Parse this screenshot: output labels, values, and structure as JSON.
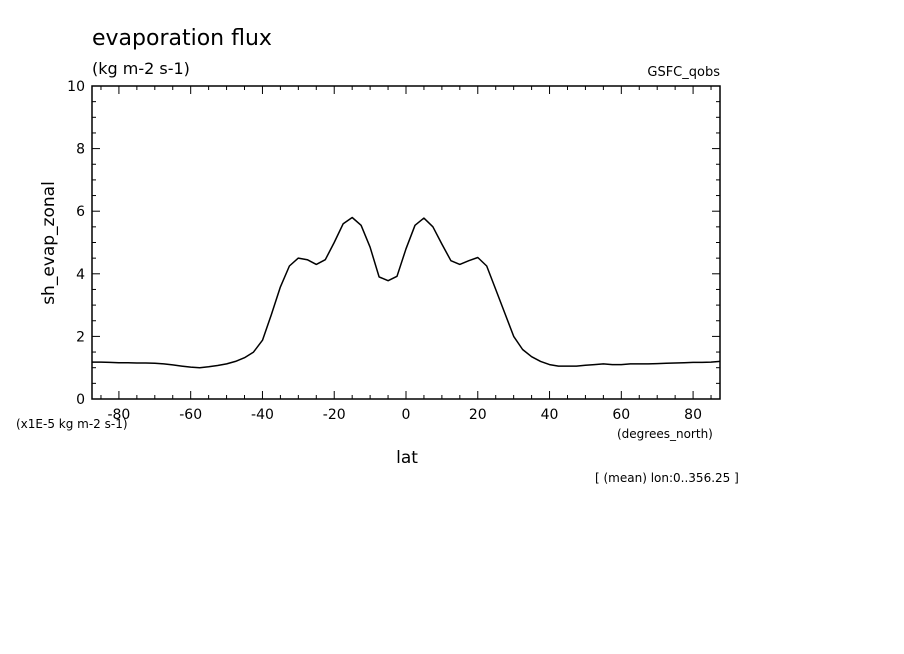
{
  "chart_data": {
    "type": "line",
    "title": "evaporation flux",
    "units": "(kg m-2 s-1)",
    "source": "GSFC_qobs",
    "xlabel": "lat",
    "xunits": "(degrees_north)",
    "ylabel": "sh_evap_zonal",
    "yscale_note": "(x1E-5 kg m-2 s-1)",
    "footer": "[ (mean) lon:0..356.25 ]",
    "xlim": [
      -87.5,
      87.5
    ],
    "ylim": [
      0,
      10
    ],
    "xticks": [
      -80,
      -60,
      -40,
      -20,
      0,
      20,
      40,
      60,
      80
    ],
    "xtick_labels": [
      "-80",
      "-60",
      "-40",
      "-20",
      "0",
      "20",
      "40",
      "60",
      "80"
    ],
    "yticks": [
      0,
      2,
      4,
      6,
      8,
      10
    ],
    "ytick_labels": [
      "0",
      "2",
      "4",
      "6",
      "8",
      "10"
    ],
    "grid": false,
    "series": [
      {
        "x": [
          -87.5,
          -85,
          -82.5,
          -80,
          -77.5,
          -75,
          -72.5,
          -70,
          -67.5,
          -65,
          -62.5,
          -60,
          -57.5,
          -55,
          -52.5,
          -50,
          -47.5,
          -45,
          -42.5,
          -40,
          -37.5,
          -35,
          -32.5,
          -30,
          -27.5,
          -25,
          -22.5,
          -20,
          -17.5,
          -15,
          -12.5,
          -10,
          -7.5,
          -5,
          -2.5,
          0,
          2.5,
          5,
          7.5,
          10,
          12.5,
          15,
          17.5,
          20,
          22.5,
          25,
          27.5,
          30,
          32.5,
          35,
          37.5,
          40,
          42.5,
          45,
          47.5,
          50,
          52.5,
          55,
          57.5,
          60,
          62.5,
          65,
          67.5,
          70,
          72.5,
          75,
          77.5,
          80,
          82.5,
          85,
          87.5
        ],
        "y": [
          1.18,
          1.18,
          1.17,
          1.16,
          1.16,
          1.15,
          1.15,
          1.14,
          1.12,
          1.09,
          1.05,
          1.02,
          1.0,
          1.03,
          1.07,
          1.12,
          1.2,
          1.32,
          1.5,
          1.88,
          2.7,
          3.58,
          4.25,
          4.5,
          4.45,
          4.3,
          4.45,
          5.0,
          5.6,
          5.8,
          5.55,
          4.85,
          3.9,
          3.78,
          3.92,
          4.8,
          5.55,
          5.78,
          5.5,
          4.95,
          4.42,
          4.3,
          4.42,
          4.52,
          4.25,
          3.5,
          2.75,
          2.0,
          1.58,
          1.35,
          1.2,
          1.1,
          1.05,
          1.05,
          1.05,
          1.08,
          1.1,
          1.12,
          1.1,
          1.1,
          1.12,
          1.12,
          1.12,
          1.13,
          1.14,
          1.15,
          1.16,
          1.17,
          1.17,
          1.18,
          1.2
        ]
      }
    ]
  }
}
